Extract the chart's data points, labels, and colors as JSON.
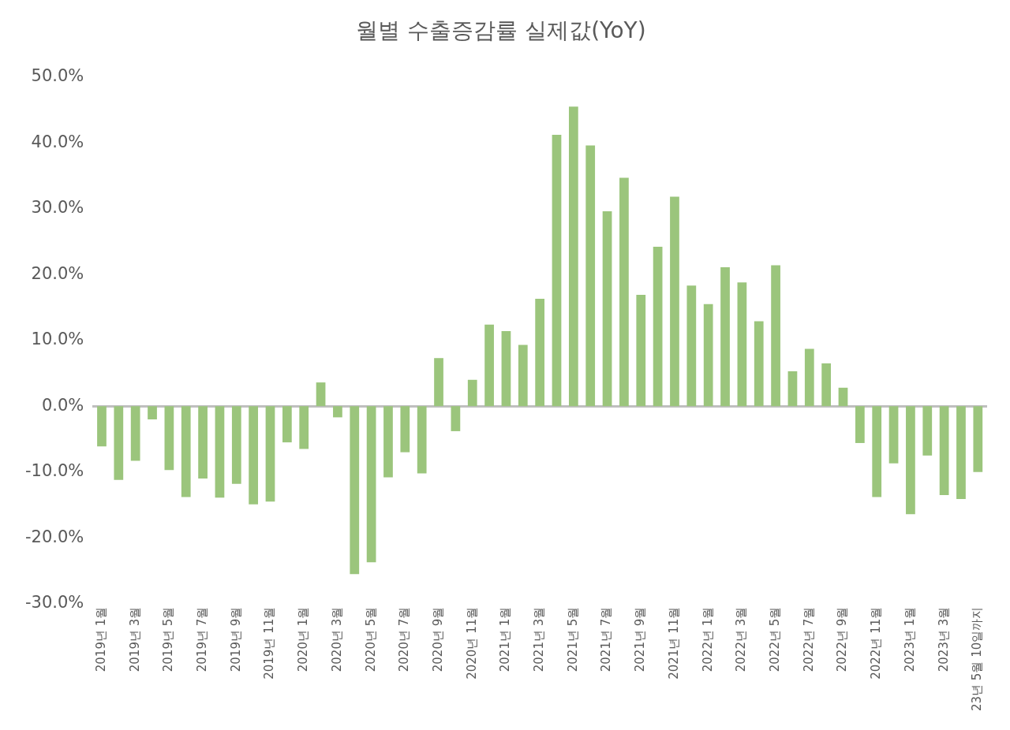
{
  "chart_data": {
    "type": "bar",
    "title": "월별 수출증감률 실제값(YoY)",
    "categories": [
      "2019년 1월",
      null,
      "2019년 3월",
      null,
      "2019년 5월",
      null,
      "2019년 7월",
      null,
      "2019년 9월",
      null,
      "2019년 11월",
      null,
      "2020년 1월",
      null,
      "2020년 3월",
      null,
      "2020년 5월",
      null,
      "2020년 7월",
      null,
      "2020년 9월",
      null,
      "2020년 11월",
      null,
      "2021년 1월",
      null,
      "2021년 3월",
      null,
      "2021년 5월",
      null,
      "2021년 7월",
      null,
      "2021년 9월",
      null,
      "2021년 11월",
      null,
      "2022년 1월",
      null,
      "2022년 3월",
      null,
      "2022년 5월",
      null,
      "2022년 7월",
      null,
      "2022년 9월",
      null,
      "2022년 11월",
      null,
      "2023년 1월",
      null,
      "2023년 3월",
      null,
      "23년 5월 10일까지"
    ],
    "values": [
      -6.1,
      -11.2,
      -8.3,
      -2.0,
      -9.7,
      -13.8,
      -11.0,
      -13.9,
      -11.8,
      -14.9,
      -14.5,
      -5.5,
      -6.5,
      3.6,
      -1.7,
      -25.5,
      -23.7,
      -10.8,
      -7.0,
      -10.2,
      7.3,
      -3.8,
      4.0,
      12.4,
      11.4,
      9.3,
      16.3,
      41.2,
      45.5,
      39.6,
      29.6,
      34.7,
      16.9,
      24.2,
      31.8,
      18.3,
      15.5,
      21.1,
      18.8,
      12.9,
      21.4,
      5.3,
      8.7,
      6.5,
      2.8,
      -5.6,
      -13.8,
      -8.7,
      -16.4,
      -7.5,
      -13.5,
      -14.1,
      -10.0
    ],
    "color": "#9bc57c",
    "ylim": [
      -30,
      50
    ],
    "yticks": [
      {
        "value": -30,
        "label": "-30.0%"
      },
      {
        "value": -20,
        "label": "-20.0%"
      },
      {
        "value": -10,
        "label": "-10.0%"
      },
      {
        "value": 0,
        "label": "0.0%"
      },
      {
        "value": 10,
        "label": "10.0%"
      },
      {
        "value": 20,
        "label": "20.0%"
      },
      {
        "value": 30,
        "label": "30.0%"
      },
      {
        "value": 40,
        "label": "40.0%"
      },
      {
        "value": 50,
        "label": "50.0%"
      }
    ]
  }
}
